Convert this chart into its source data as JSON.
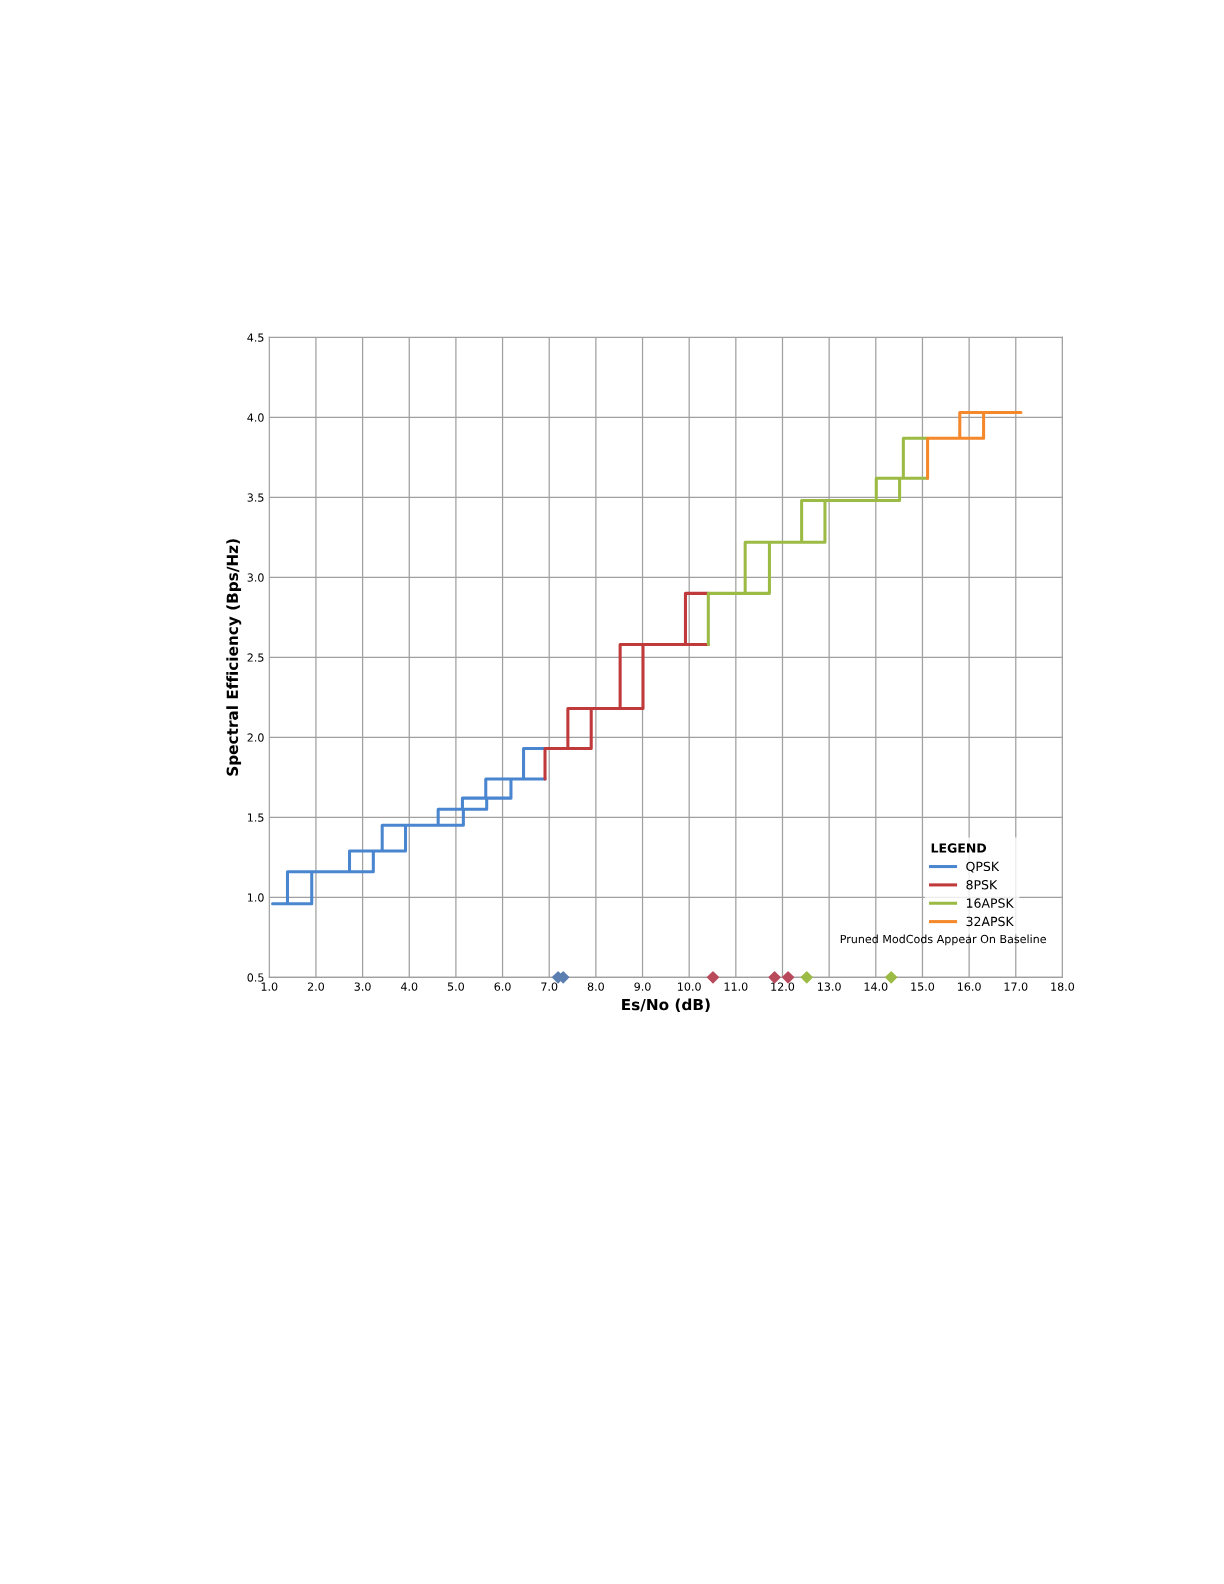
{
  "chart_data": {
    "type": "line",
    "xlabel": "Es/No (dB)",
    "ylabel": "Spectral Efficiency (Bps/Hz)",
    "legend_title": "LEGEND",
    "series": [
      {
        "name": "QPSK",
        "color": "#4a86d0",
        "x": [
          1.07,
          1.07,
          1.91,
          1.91,
          null,
          1.39,
          1.39,
          3.23,
          3.23,
          null,
          2.72,
          2.72,
          3.92,
          3.92,
          null,
          3.42,
          3.42,
          5.16,
          5.16,
          null,
          4.62,
          4.62,
          5.66,
          5.66,
          null,
          5.14,
          5.14,
          6.18,
          6.18,
          null,
          5.64,
          5.64,
          6.91,
          null,
          6.45,
          6.45,
          6.91
        ],
        "values": [
          0.96,
          0.96,
          0.96,
          1.16,
          null,
          0.96,
          1.16,
          1.16,
          1.29,
          null,
          1.16,
          1.29,
          1.29,
          1.45,
          null,
          1.29,
          1.45,
          1.45,
          1.55,
          null,
          1.45,
          1.55,
          1.55,
          1.62,
          null,
          1.55,
          1.62,
          1.62,
          1.74,
          null,
          1.62,
          1.74,
          1.74,
          null,
          1.74,
          1.93,
          1.93
        ]
      },
      {
        "name": "8PSK",
        "color": "#c0393b",
        "x": [
          6.91,
          6.91,
          7.9,
          7.9,
          null,
          7.4,
          7.4,
          9.01,
          9.01,
          null,
          8.52,
          8.52,
          10.41,
          null,
          9.92,
          9.92,
          10.41
        ],
        "values": [
          1.74,
          1.93,
          1.93,
          2.18,
          null,
          1.93,
          2.18,
          2.18,
          2.58,
          null,
          2.18,
          2.58,
          2.58,
          null,
          2.58,
          2.9,
          2.9
        ]
      },
      {
        "name": "16APSK",
        "color": "#9bbb45",
        "x": [
          10.41,
          10.41,
          11.72,
          11.72,
          null,
          11.2,
          11.2,
          12.91,
          12.91,
          null,
          12.41,
          12.41,
          14.51,
          14.51,
          null,
          14.01,
          14.01,
          15.11,
          null,
          14.59,
          14.59,
          15.11
        ],
        "values": [
          2.58,
          2.9,
          2.9,
          3.22,
          null,
          2.9,
          3.22,
          3.22,
          3.48,
          null,
          3.22,
          3.48,
          3.48,
          3.62,
          null,
          3.48,
          3.62,
          3.62,
          null,
          3.62,
          3.87,
          3.87
        ]
      },
      {
        "name": "32APSK",
        "color": "#f5882a",
        "x": [
          15.11,
          15.11,
          16.31,
          16.31,
          null,
          15.8,
          15.8,
          17.11
        ],
        "values": [
          3.62,
          3.87,
          3.87,
          4.03,
          null,
          3.87,
          4.03,
          4.03
        ]
      },
      {
        "type": "scatter",
        "color": "#5b7fb0",
        "marker": "diamond",
        "x": [
          7.19,
          7.3
        ],
        "values": [
          0.5,
          0.5
        ]
      },
      {
        "type": "scatter",
        "color": "#b84a5c",
        "marker": "diamond",
        "x": [
          10.51,
          11.83,
          12.12
        ],
        "values": [
          0.5,
          0.5,
          0.5
        ]
      },
      {
        "type": "scatter",
        "color": "#9bbb45",
        "marker": "diamond",
        "x": [
          12.52,
          14.33
        ],
        "values": [
          0.5,
          0.5
        ]
      }
    ],
    "xlim": [
      1,
      18
    ],
    "ylim": [
      0.5,
      4.5
    ],
    "xticks": [
      {
        "value": 1,
        "label": "1.0"
      },
      {
        "value": 2,
        "label": "2.0"
      },
      {
        "value": 3,
        "label": "3.0"
      },
      {
        "value": 4,
        "label": "4.0"
      },
      {
        "value": 5,
        "label": "5.0"
      },
      {
        "value": 6,
        "label": "6.0"
      },
      {
        "value": 7,
        "label": "7.0"
      },
      {
        "value": 8,
        "label": "8.0"
      },
      {
        "value": 9,
        "label": "9.0"
      },
      {
        "value": 10,
        "label": "10.0"
      },
      {
        "value": 11,
        "label": "11.0"
      },
      {
        "value": 12,
        "label": "12.0"
      },
      {
        "value": 13,
        "label": "13.0"
      },
      {
        "value": 14,
        "label": "14.0"
      },
      {
        "value": 15,
        "label": "15.0"
      },
      {
        "value": 16,
        "label": "16.0"
      },
      {
        "value": 17,
        "label": "17.0"
      },
      {
        "value": 18,
        "label": "18.0"
      }
    ],
    "yticks": [
      0.5,
      {
        "value": 1,
        "label": "1.0"
      },
      1.5,
      {
        "value": 2,
        "label": "2.0"
      },
      2.5,
      {
        "value": 3,
        "label": "3.0"
      },
      3.5,
      {
        "value": 4,
        "label": "4.0"
      },
      4.5
    ],
    "grid": true,
    "legend": "lower right",
    "marker": "none",
    "line_style": "solid",
    "annotations": [
      "Pruned ModCods Appear On Baseline"
    ]
  }
}
